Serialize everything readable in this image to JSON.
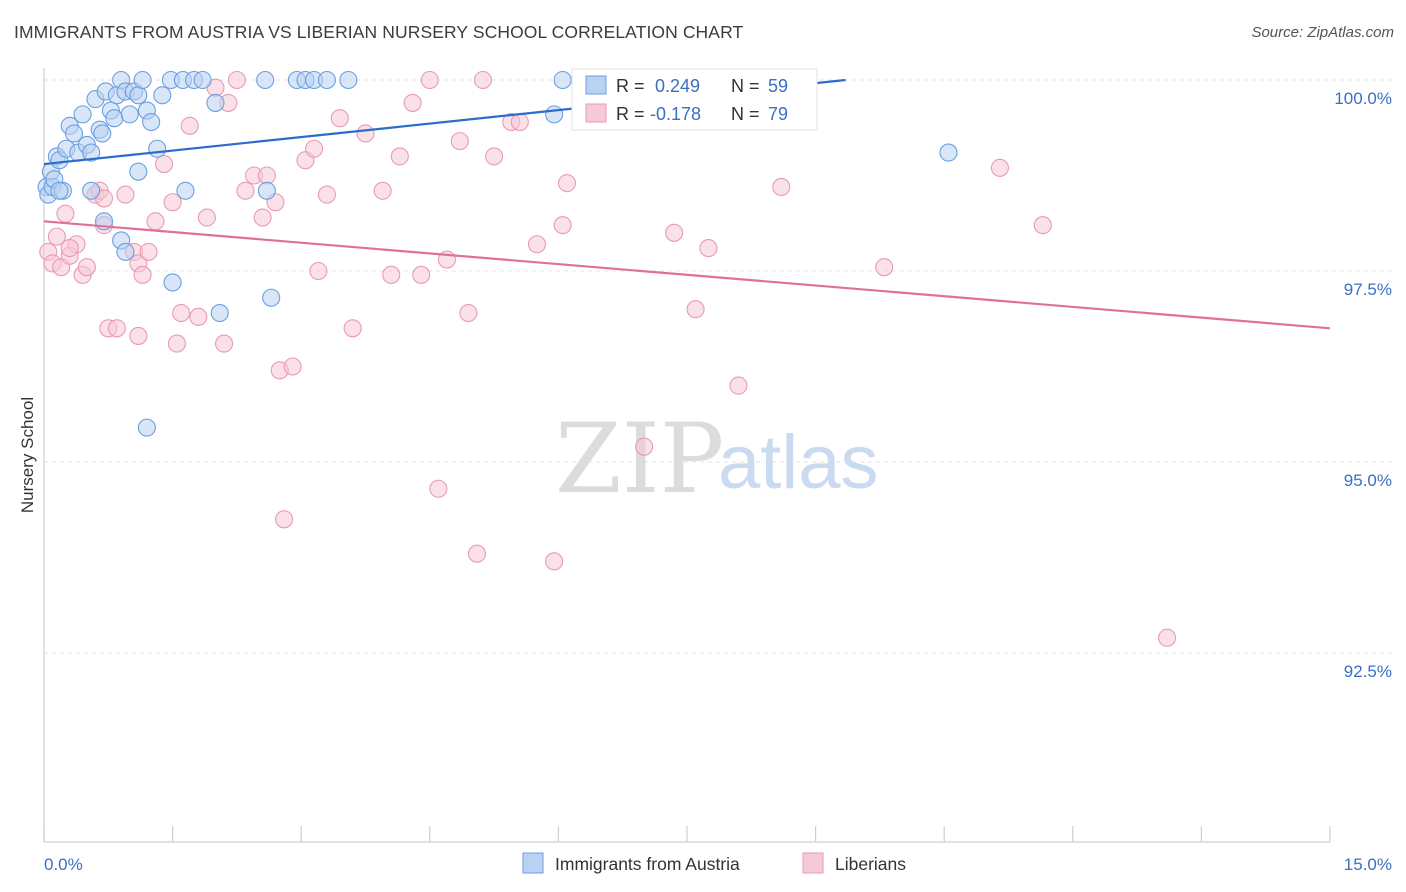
{
  "title": "IMMIGRANTS FROM AUSTRIA VS LIBERIAN NURSERY SCHOOL CORRELATION CHART",
  "source": "Source: ZipAtlas.com",
  "watermark": {
    "part1": "ZIP",
    "part2": "atlas"
  },
  "chart_data": {
    "type": "scatter",
    "title": "IMMIGRANTS FROM AUSTRIA VS LIBERIAN NURSERY SCHOOL CORRELATION CHART",
    "xlabel": "",
    "ylabel": "Nursery School",
    "xlim": [
      0,
      15
    ],
    "ylim": [
      90.0,
      100.3
    ],
    "x_tick_labels": [
      "0.0%",
      "15.0%"
    ],
    "y_ticks": [
      100.0,
      97.5,
      95.0,
      92.5
    ],
    "y_tick_labels": [
      "100.0%",
      "97.5%",
      "95.0%",
      "92.5%"
    ],
    "grid": true,
    "legend_position": "bottom-center",
    "stats_box": {
      "r_label": "R =",
      "n_label": "N =",
      "rows": [
        {
          "r": "0.249",
          "n": "59"
        },
        {
          "r": "-0.178",
          "n": "79"
        }
      ]
    },
    "series": [
      {
        "name": "Immigrants from Austria",
        "color": "#6b9fe0",
        "fill": "#b9d2f3",
        "line_color": "#2b6ccc",
        "trend": {
          "x": [
            0.0,
            9.35
          ],
          "y": [
            98.9,
            100.0
          ]
        },
        "points": [
          [
            0.03,
            98.6
          ],
          [
            0.05,
            98.5
          ],
          [
            0.08,
            98.8
          ],
          [
            0.1,
            98.6
          ],
          [
            0.12,
            98.7
          ],
          [
            0.15,
            99.0
          ],
          [
            0.18,
            98.95
          ],
          [
            0.22,
            98.55
          ],
          [
            0.26,
            99.1
          ],
          [
            0.3,
            99.4
          ],
          [
            0.35,
            99.3
          ],
          [
            0.4,
            99.05
          ],
          [
            0.45,
            99.55
          ],
          [
            0.5,
            99.15
          ],
          [
            0.55,
            99.05
          ],
          [
            0.6,
            99.75
          ],
          [
            0.65,
            99.35
          ],
          [
            0.68,
            99.3
          ],
          [
            0.72,
            99.85
          ],
          [
            0.78,
            99.6
          ],
          [
            0.82,
            99.5
          ],
          [
            0.85,
            99.8
          ],
          [
            0.9,
            100.0
          ],
          [
            0.95,
            99.85
          ],
          [
            1.0,
            99.55
          ],
          [
            1.05,
            99.85
          ],
          [
            1.1,
            99.8
          ],
          [
            1.15,
            100.0
          ],
          [
            1.2,
            99.6
          ],
          [
            1.25,
            99.45
          ],
          [
            1.32,
            99.1
          ],
          [
            1.38,
            99.8
          ],
          [
            1.48,
            100.0
          ],
          [
            1.62,
            100.0
          ],
          [
            1.75,
            100.0
          ],
          [
            1.85,
            100.0
          ],
          [
            2.0,
            99.7
          ],
          [
            2.58,
            100.0
          ],
          [
            2.95,
            100.0
          ],
          [
            3.05,
            100.0
          ],
          [
            3.15,
            100.0
          ],
          [
            3.3,
            100.0
          ],
          [
            3.55,
            100.0
          ],
          [
            5.95,
            99.55
          ],
          [
            6.05,
            100.0
          ],
          [
            8.05,
            100.0
          ],
          [
            10.55,
            99.05
          ],
          [
            0.18,
            98.55
          ],
          [
            0.55,
            98.55
          ],
          [
            0.7,
            98.15
          ],
          [
            0.9,
            97.9
          ],
          [
            1.1,
            98.8
          ],
          [
            1.65,
            98.55
          ],
          [
            1.5,
            97.35
          ],
          [
            2.05,
            96.95
          ],
          [
            2.6,
            98.55
          ],
          [
            2.65,
            97.15
          ],
          [
            0.95,
            97.75
          ],
          [
            1.2,
            95.45
          ]
        ]
      },
      {
        "name": "Liberians",
        "color": "#e99ab4",
        "fill": "#f6c9d6",
        "line_color": "#e07098",
        "trend": {
          "x": [
            0.0,
            15.0
          ],
          "y": [
            98.15,
            96.75
          ]
        },
        "points": [
          [
            0.05,
            97.75
          ],
          [
            0.1,
            97.6
          ],
          [
            0.15,
            97.95
          ],
          [
            0.2,
            97.55
          ],
          [
            0.25,
            98.25
          ],
          [
            0.3,
            97.7
          ],
          [
            0.38,
            97.85
          ],
          [
            0.45,
            97.45
          ],
          [
            0.5,
            97.55
          ],
          [
            0.6,
            98.5
          ],
          [
            0.65,
            98.55
          ],
          [
            0.7,
            98.45
          ],
          [
            0.75,
            96.75
          ],
          [
            0.85,
            96.75
          ],
          [
            0.95,
            98.5
          ],
          [
            1.05,
            97.75
          ],
          [
            1.1,
            97.6
          ],
          [
            1.15,
            97.45
          ],
          [
            1.22,
            97.75
          ],
          [
            1.3,
            98.15
          ],
          [
            1.4,
            98.9
          ],
          [
            1.5,
            98.4
          ],
          [
            1.55,
            96.55
          ],
          [
            1.6,
            96.95
          ],
          [
            1.7,
            99.4
          ],
          [
            1.8,
            96.9
          ],
          [
            1.9,
            98.2
          ],
          [
            2.0,
            99.9
          ],
          [
            2.1,
            96.55
          ],
          [
            2.15,
            99.7
          ],
          [
            2.25,
            100.0
          ],
          [
            2.35,
            98.55
          ],
          [
            2.45,
            98.75
          ],
          [
            2.55,
            98.2
          ],
          [
            2.6,
            98.75
          ],
          [
            2.7,
            98.4
          ],
          [
            2.75,
            96.2
          ],
          [
            2.8,
            94.25
          ],
          [
            2.9,
            96.25
          ],
          [
            3.05,
            98.95
          ],
          [
            3.15,
            99.1
          ],
          [
            3.2,
            97.5
          ],
          [
            3.3,
            98.5
          ],
          [
            3.45,
            99.5
          ],
          [
            3.6,
            96.75
          ],
          [
            3.75,
            99.3
          ],
          [
            3.95,
            98.55
          ],
          [
            4.05,
            97.45
          ],
          [
            4.15,
            99.0
          ],
          [
            4.3,
            99.7
          ],
          [
            4.4,
            97.45
          ],
          [
            4.5,
            100.0
          ],
          [
            4.6,
            94.65
          ],
          [
            4.7,
            97.65
          ],
          [
            4.85,
            99.2
          ],
          [
            4.95,
            96.95
          ],
          [
            5.05,
            93.8
          ],
          [
            5.12,
            100.0
          ],
          [
            5.25,
            99.0
          ],
          [
            5.45,
            99.45
          ],
          [
            5.55,
            99.45
          ],
          [
            5.75,
            97.85
          ],
          [
            5.95,
            93.7
          ],
          [
            6.05,
            98.1
          ],
          [
            6.1,
            98.65
          ],
          [
            6.75,
            100.0
          ],
          [
            7.0,
            95.2
          ],
          [
            7.35,
            98.0
          ],
          [
            7.6,
            97.0
          ],
          [
            7.75,
            97.8
          ],
          [
            8.1,
            96.0
          ],
          [
            8.6,
            98.6
          ],
          [
            9.8,
            97.55
          ],
          [
            11.15,
            98.85
          ],
          [
            11.65,
            98.1
          ],
          [
            13.1,
            92.7
          ],
          [
            0.7,
            98.1
          ],
          [
            1.1,
            96.65
          ],
          [
            0.3,
            97.8
          ]
        ]
      }
    ]
  }
}
